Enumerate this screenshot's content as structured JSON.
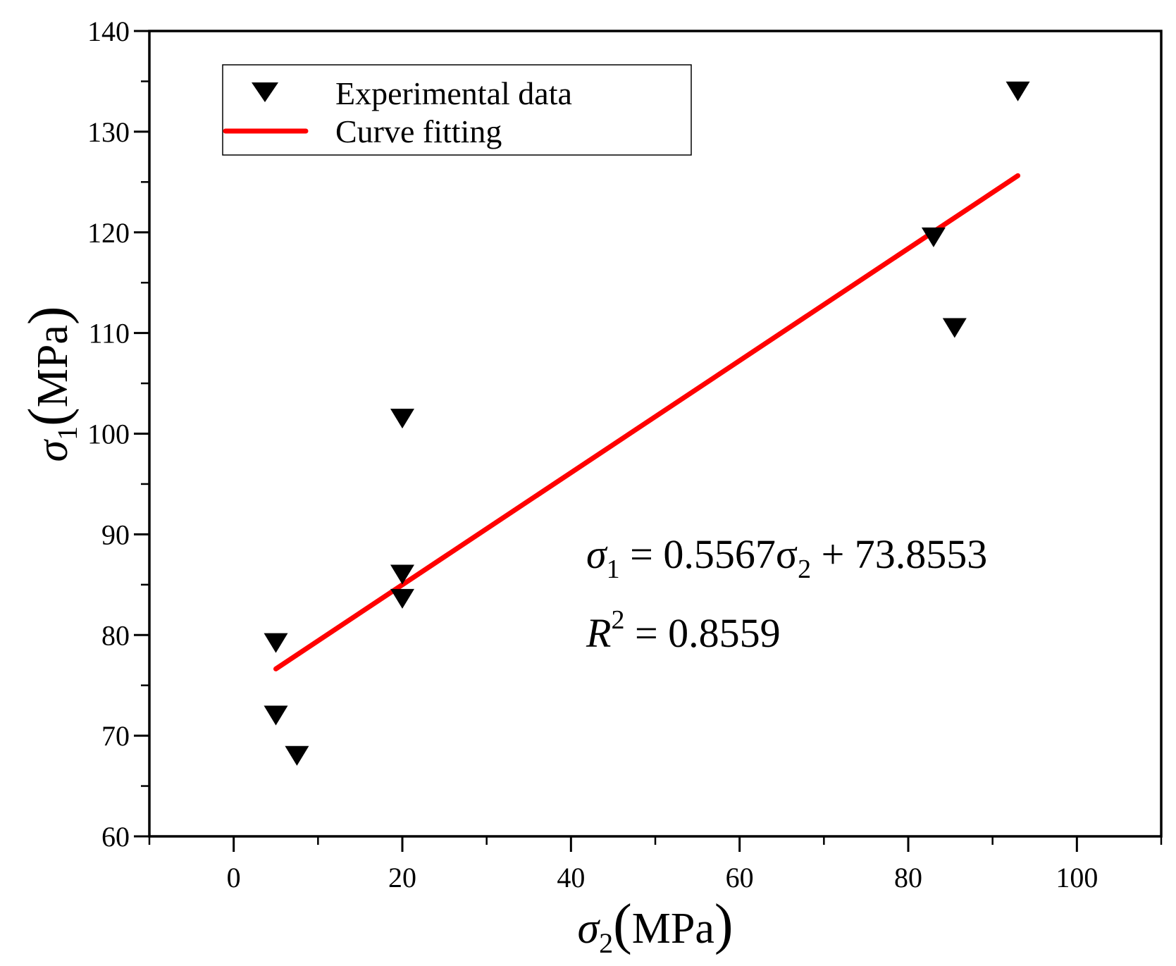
{
  "chart_data": {
    "type": "scatter",
    "xlabel": {
      "symbol": "σ",
      "sub": "2",
      "unit": "MPa"
    },
    "ylabel": {
      "symbol": "σ",
      "sub": "1",
      "unit": "MPa"
    },
    "xlim": [
      -10,
      110
    ],
    "ylim": [
      60,
      140
    ],
    "xticks": [
      0,
      20,
      40,
      60,
      80,
      100
    ],
    "yticks": [
      60,
      70,
      80,
      90,
      100,
      110,
      120,
      130,
      140
    ],
    "xminor_step": 10,
    "yminor_step": 5,
    "colors": {
      "fit": "#ff0000",
      "marker": "#000000"
    },
    "legend": {
      "position": "top-left",
      "entries": [
        {
          "label": "Experimental data",
          "kind": "marker"
        },
        {
          "label": "Curve fitting",
          "kind": "line"
        }
      ]
    },
    "series": [
      {
        "name": "Experimental data",
        "marker": "down-triangle",
        "points": [
          {
            "x": 5,
            "y": 79.2
          },
          {
            "x": 5,
            "y": 72
          },
          {
            "x": 7.5,
            "y": 68
          },
          {
            "x": 20,
            "y": 101.5
          },
          {
            "x": 20,
            "y": 86
          },
          {
            "x": 20,
            "y": 83.6
          },
          {
            "x": 83,
            "y": 119.5
          },
          {
            "x": 85.5,
            "y": 110.5
          },
          {
            "x": 93,
            "y": 134
          }
        ]
      },
      {
        "name": "Curve fitting",
        "type": "line",
        "slope": 0.5567,
        "intercept": 73.8553,
        "x": [
          5,
          93
        ]
      }
    ],
    "annotation": {
      "eq_lhs": "σ",
      "eq_lhs_sub": "1",
      "eq_mid": " = 0.5567σ",
      "eq_mid_sub": "2",
      "eq_rhs": " + 73.8553",
      "r2_symbol": "R",
      "r2_sup": "2",
      "r2_rest": " = 0.8559"
    }
  }
}
